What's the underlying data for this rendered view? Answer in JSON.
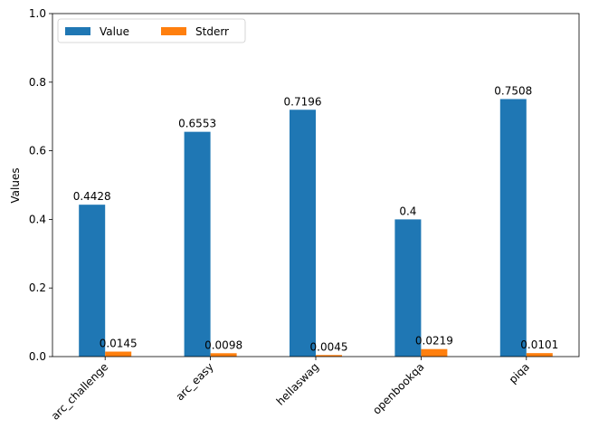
{
  "chart_data": {
    "type": "bar",
    "title": "",
    "xlabel": "",
    "ylabel": "Values",
    "ylim": [
      0,
      1.0
    ],
    "yticks": [
      0.0,
      0.2,
      0.4,
      0.6,
      0.8,
      1.0
    ],
    "ytick_labels": [
      "0.0",
      "0.2",
      "0.4",
      "0.6",
      "0.8",
      "1.0"
    ],
    "categories": [
      "arc_challenge",
      "arc_easy",
      "hellaswag",
      "openbookqa",
      "piqa"
    ],
    "series": [
      {
        "name": "Value",
        "color": "#1f77b4",
        "values": [
          0.4428,
          0.6553,
          0.7196,
          0.4,
          0.7508
        ],
        "labels": [
          "0.4428",
          "0.6553",
          "0.7196",
          "0.4",
          "0.7508"
        ]
      },
      {
        "name": "Stderr",
        "color": "#ff7f0e",
        "values": [
          0.0145,
          0.0098,
          0.0045,
          0.0219,
          0.0101
        ],
        "labels": [
          "0.0145",
          "0.0098",
          "0.0045",
          "0.0219",
          "0.0101"
        ]
      }
    ],
    "legend": {
      "placement": "top-left",
      "columns": 2
    },
    "grid": false
  }
}
